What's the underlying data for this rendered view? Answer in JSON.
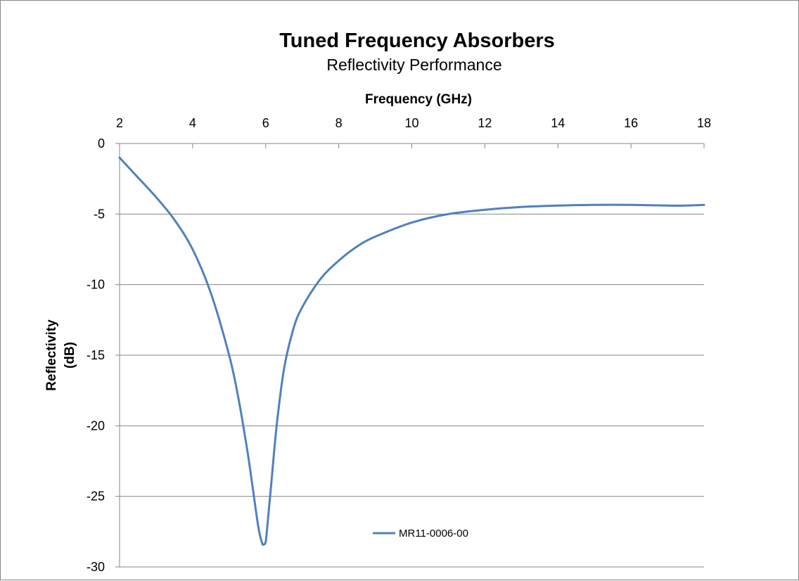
{
  "chart_data": {
    "type": "line",
    "title": "Tuned Frequency Absorbers",
    "subtitle": "Reflectivity Performance",
    "xlabel": "Frequency (GHz)",
    "ylabel_lines": [
      "Reflectivity",
      "(dB)"
    ],
    "xlim": [
      2,
      18
    ],
    "ylim": [
      -30,
      0
    ],
    "x_ticks": [
      "2",
      "4",
      "6",
      "8",
      "10",
      "12",
      "14",
      "16",
      "18"
    ],
    "y_ticks": [
      "0",
      "-5",
      "-10",
      "-15",
      "-20",
      "-25",
      "-30"
    ],
    "x_axis_position": "top",
    "grid": "horizontal",
    "legend_position": "bottom-center",
    "series_color": "#4f81bd",
    "series": [
      {
        "name": "MR11-0006-00",
        "x": [
          2,
          2.5,
          3,
          3.5,
          4,
          4.5,
          5,
          5.25,
          5.5,
          5.65,
          5.8,
          5.9,
          5.95,
          6.0,
          6.05,
          6.15,
          6.3,
          6.5,
          6.75,
          7,
          7.5,
          8,
          8.5,
          9,
          10,
          11,
          12,
          13,
          14,
          15,
          16,
          17,
          17.5,
          18
        ],
        "y": [
          -1.0,
          -2.4,
          -3.8,
          -5.4,
          -7.5,
          -10.6,
          -15.0,
          -18.0,
          -21.8,
          -24.5,
          -27.2,
          -28.3,
          -28.4,
          -28.2,
          -27.0,
          -24.2,
          -20.0,
          -16.0,
          -13.2,
          -11.6,
          -9.6,
          -8.3,
          -7.3,
          -6.6,
          -5.6,
          -5.0,
          -4.7,
          -4.5,
          -4.4,
          -4.35,
          -4.35,
          -4.4,
          -4.4,
          -4.35
        ]
      }
    ]
  }
}
